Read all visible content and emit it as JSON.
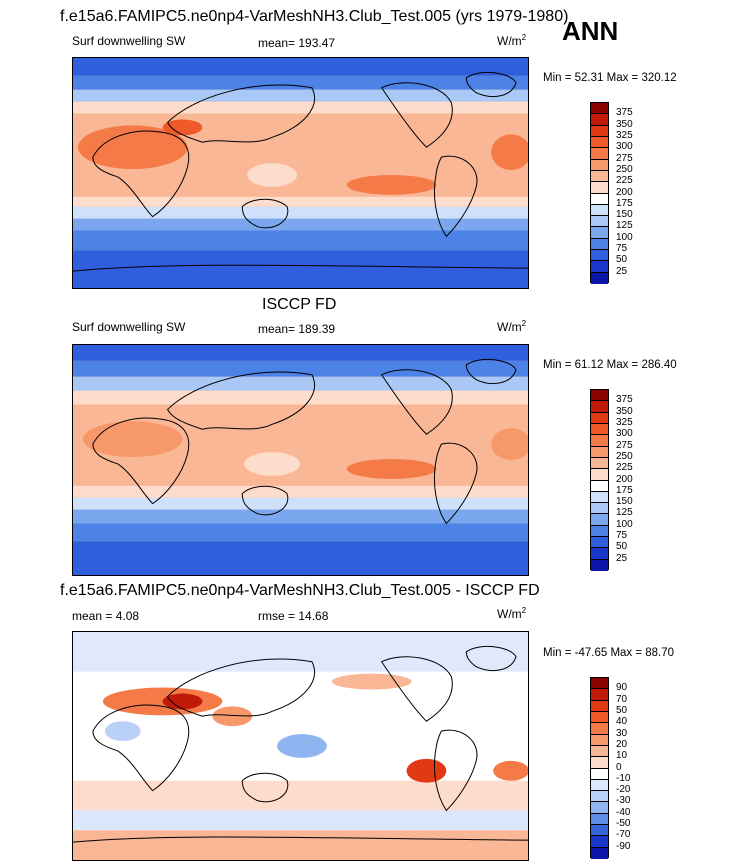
{
  "header": {
    "model_title": "f.e15a6.FAMIPC5.ne0np4-VarMeshNH3.Club_Test.005 (yrs 1979-1980)",
    "season": "ANN"
  },
  "panels": [
    {
      "id": "model",
      "title": "",
      "left_label": "Surf downwelling SW",
      "center_label": "mean= 193.47",
      "units_base": "W/m",
      "units_exp": "2",
      "stats": "Min =  52.31 Max = 320.12",
      "colorbar": {
        "levels": [
          "375",
          "350",
          "325",
          "300",
          "275",
          "250",
          "225",
          "200",
          "175",
          "150",
          "125",
          "100",
          "75",
          "50",
          "25"
        ],
        "colors": [
          "#8b0000",
          "#c11a08",
          "#df3a12",
          "#ee5a2a",
          "#f47a48",
          "#f7986b",
          "#f9b795",
          "#fddccb",
          "#ffffff",
          "#cfe0fb",
          "#a9c8f6",
          "#7aa7ee",
          "#4d82e6",
          "#2f5fdc",
          "#1a37c9",
          "#0b16a8"
        ]
      }
    },
    {
      "id": "obs",
      "title": "ISCCP FD",
      "left_label": "Surf downwelling SW",
      "center_label": "mean= 189.39",
      "units_base": "W/m",
      "units_exp": "2",
      "stats": "Min =  61.12 Max = 286.40",
      "colorbar": {
        "levels": [
          "375",
          "350",
          "325",
          "300",
          "275",
          "250",
          "225",
          "200",
          "175",
          "150",
          "125",
          "100",
          "75",
          "50",
          "25"
        ],
        "colors": [
          "#8b0000",
          "#c11a08",
          "#df3a12",
          "#ee5a2a",
          "#f47a48",
          "#f7986b",
          "#f9b795",
          "#fddccb",
          "#ffffff",
          "#cfe0fb",
          "#a9c8f6",
          "#7aa7ee",
          "#4d82e6",
          "#2f5fdc",
          "#1a37c9",
          "#0b16a8"
        ]
      }
    },
    {
      "id": "diff",
      "title": "f.e15a6.FAMIPC5.ne0np4-VarMeshNH3.Club_Test.005 - ISCCP FD",
      "left_label": "mean =   4.08",
      "center_label": "rmse =  14.68",
      "units_base": "W/m",
      "units_exp": "2",
      "stats": "Min = -47.65 Max =  88.70",
      "colorbar": {
        "levels": [
          "90",
          "70",
          "50",
          "40",
          "30",
          "20",
          "10",
          "0",
          "-10",
          "-20",
          "-30",
          "-40",
          "-50",
          "-70",
          "-90"
        ],
        "colors": [
          "#8b0000",
          "#c11a08",
          "#df3a12",
          "#ee5a2a",
          "#f47a48",
          "#f7986b",
          "#f9b795",
          "#fddccb",
          "#ffffff",
          "#dbe7fb",
          "#b9d0f7",
          "#8fb4f0",
          "#5d8de6",
          "#3663d8",
          "#1a37c9",
          "#0b16a8"
        ]
      }
    }
  ]
}
